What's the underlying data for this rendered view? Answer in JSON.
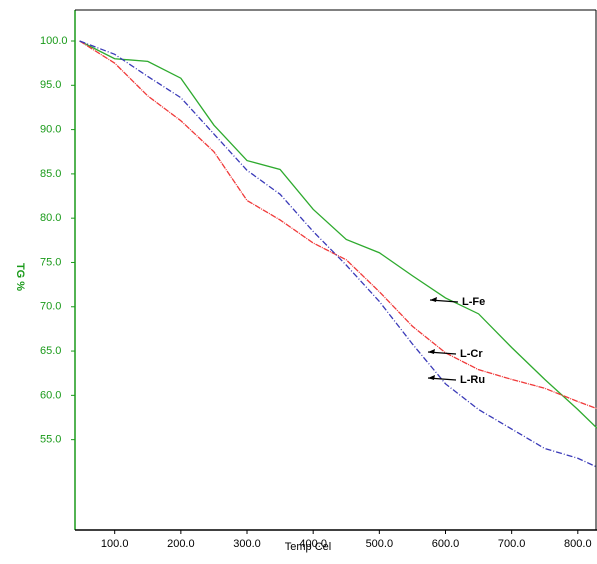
{
  "chart_data": {
    "type": "line",
    "ylabel": "TG %",
    "xlabel": "Temp Cel",
    "axis_color": "#1a9a1a",
    "x": [
      47,
      100,
      150,
      200,
      250,
      300,
      350,
      400,
      450,
      500,
      550,
      600,
      650,
      700,
      750,
      800,
      829
    ],
    "series": [
      {
        "name": "L-Fe",
        "color": "#2eaa2e",
        "values": [
          100,
          98,
          97.7,
          95.8,
          90.5,
          86.5,
          85.5,
          81.0,
          77.6,
          76.1,
          73.5,
          71.0,
          69.2,
          65.4,
          61.8,
          58.4,
          56.3
        ]
      },
      {
        "name": "L-Cr",
        "color": "#f03a3a",
        "values": [
          100,
          97.5,
          93.8,
          91.0,
          87.5,
          82.0,
          79.8,
          77.2,
          75.3,
          71.7,
          67.8,
          64.8,
          62.9,
          61.8,
          60.8,
          59.3,
          58.5
        ]
      },
      {
        "name": "L-Ru",
        "color": "#3a3ab8",
        "values": [
          100,
          98.5,
          96.0,
          93.6,
          89.5,
          85.4,
          82.7,
          78.5,
          74.7,
          70.6,
          65.8,
          61.3,
          58.4,
          56.2,
          54.0,
          52.9,
          51.9
        ]
      }
    ],
    "xlim": [
      40,
      829
    ],
    "ylim": [
      44.8,
      103.5
    ],
    "xticks": [
      {
        "value": 100,
        "label": "100.0"
      },
      {
        "value": 200,
        "label": "200.0"
      },
      {
        "value": 300,
        "label": "300.0"
      },
      {
        "value": 400,
        "label": "400.0"
      },
      {
        "value": 500,
        "label": "500.0"
      },
      {
        "value": 600,
        "label": "600.0"
      },
      {
        "value": 700,
        "label": "700.0"
      },
      {
        "value": 800,
        "label": "800.0"
      }
    ],
    "yticks": [
      {
        "value": 55,
        "label": "55.0"
      },
      {
        "value": 60,
        "label": "60.0"
      },
      {
        "value": 65,
        "label": "65.0"
      },
      {
        "value": 70,
        "label": "70.0"
      },
      {
        "value": 75,
        "label": "75.0"
      },
      {
        "value": 80,
        "label": "80.0"
      },
      {
        "value": 85,
        "label": "85.0"
      },
      {
        "value": 90,
        "label": "90.0"
      },
      {
        "value": 95,
        "label": "95.0"
      },
      {
        "value": 100,
        "label": "100.0"
      }
    ]
  }
}
